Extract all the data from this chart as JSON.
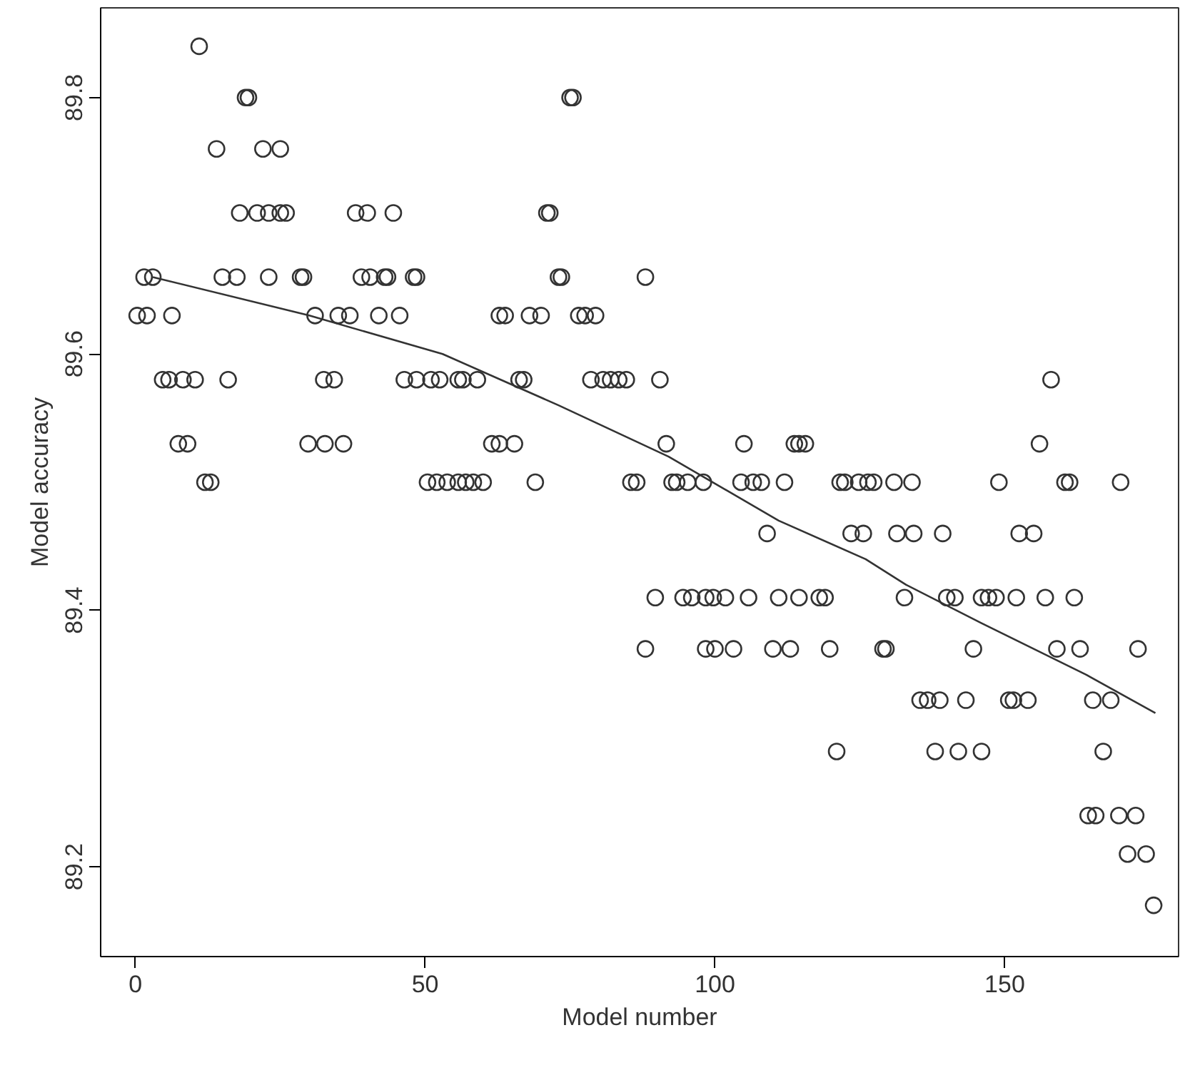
{
  "chart_data": {
    "type": "scatter",
    "xlabel": "Model number",
    "ylabel": "Model accuracy",
    "xlim": [
      -6,
      180
    ],
    "ylim": [
      89.13,
      89.87
    ],
    "xticks": [
      0,
      50,
      100,
      150
    ],
    "yticks": [
      89.2,
      89.4,
      89.6,
      89.8
    ],
    "grid": false,
    "series": [
      {
        "color": "#333333",
        "marker": "circle",
        "x": [
          11,
          19,
          19.5,
          75,
          75.5,
          14,
          22,
          25,
          18,
          21,
          23,
          25,
          26,
          38,
          40,
          44.5,
          71,
          71.5,
          1.5,
          3,
          15,
          17.5,
          23,
          28.5,
          29,
          39,
          40.5,
          43,
          43.5,
          48,
          48.5,
          73,
          73.5,
          88,
          0.3,
          2,
          6.3,
          31,
          35,
          37,
          42,
          45.6,
          62.8,
          63.8,
          68,
          70,
          76.5,
          77.6,
          79.4,
          4.7,
          5.8,
          8.2,
          10.3,
          16,
          32.5,
          34.3,
          46.4,
          48.5,
          51,
          52.5,
          55.7,
          56.5,
          59,
          66.2,
          67,
          78.6,
          80.7,
          82,
          83.4,
          84.7,
          90.5,
          158,
          7.4,
          9,
          29.8,
          32.7,
          35.9,
          61.5,
          62.8,
          65.4,
          91.6,
          105,
          113.7,
          114.5,
          115.6,
          156,
          12,
          13,
          50.4,
          52,
          53.8,
          55.7,
          57,
          58.3,
          60,
          69,
          85.5,
          86.5,
          92.6,
          93.4,
          95.3,
          98,
          104.5,
          106.6,
          108,
          112,
          121.6,
          122.4,
          124.8,
          126.4,
          127.4,
          130.9,
          134,
          149,
          160.4,
          161.2,
          170,
          109,
          123.5,
          125.6,
          131.4,
          134.3,
          139.3,
          152.5,
          155,
          89.7,
          94.5,
          96,
          98.4,
          99.7,
          101.8,
          105.8,
          111,
          114.5,
          118,
          119,
          132.7,
          140,
          141.4,
          146,
          147.2,
          148.5,
          152,
          157,
          162,
          88,
          98.4,
          100,
          103.2,
          110,
          113,
          119.8,
          129,
          129.5,
          144.6,
          159,
          163,
          173,
          135.4,
          136.7,
          138.8,
          143.3,
          150.7,
          151.5,
          154,
          165.2,
          168.3,
          121,
          138,
          142,
          146,
          167,
          164.4,
          165.7,
          169.7,
          172.6,
          171.2,
          174.4,
          175.7
        ],
        "values": [
          89.84,
          89.8,
          89.8,
          89.8,
          89.8,
          89.76,
          89.76,
          89.76,
          89.71,
          89.71,
          89.71,
          89.71,
          89.71,
          89.71,
          89.71,
          89.71,
          89.71,
          89.71,
          89.66,
          89.66,
          89.66,
          89.66,
          89.66,
          89.66,
          89.66,
          89.66,
          89.66,
          89.66,
          89.66,
          89.66,
          89.66,
          89.66,
          89.66,
          89.66,
          89.63,
          89.63,
          89.63,
          89.63,
          89.63,
          89.63,
          89.63,
          89.63,
          89.63,
          89.63,
          89.63,
          89.63,
          89.63,
          89.63,
          89.63,
          89.58,
          89.58,
          89.58,
          89.58,
          89.58,
          89.58,
          89.58,
          89.58,
          89.58,
          89.58,
          89.58,
          89.58,
          89.58,
          89.58,
          89.58,
          89.58,
          89.58,
          89.58,
          89.58,
          89.58,
          89.58,
          89.58,
          89.58,
          89.53,
          89.53,
          89.53,
          89.53,
          89.53,
          89.53,
          89.53,
          89.53,
          89.53,
          89.53,
          89.53,
          89.53,
          89.53,
          89.53,
          89.5,
          89.5,
          89.5,
          89.5,
          89.5,
          89.5,
          89.5,
          89.5,
          89.5,
          89.5,
          89.5,
          89.5,
          89.5,
          89.5,
          89.5,
          89.5,
          89.5,
          89.5,
          89.5,
          89.5,
          89.5,
          89.5,
          89.5,
          89.5,
          89.5,
          89.5,
          89.5,
          89.5,
          89.5,
          89.5,
          89.5,
          89.46,
          89.46,
          89.46,
          89.46,
          89.46,
          89.46,
          89.46,
          89.46,
          89.41,
          89.41,
          89.41,
          89.41,
          89.41,
          89.41,
          89.41,
          89.41,
          89.41,
          89.41,
          89.41,
          89.41,
          89.41,
          89.41,
          89.41,
          89.41,
          89.41,
          89.41,
          89.41,
          89.41,
          89.37,
          89.37,
          89.37,
          89.37,
          89.37,
          89.37,
          89.37,
          89.37,
          89.37,
          89.37,
          89.37,
          89.37,
          89.37,
          89.33,
          89.33,
          89.33,
          89.33,
          89.33,
          89.33,
          89.33,
          89.33,
          89.33,
          89.29,
          89.29,
          89.29,
          89.29,
          89.29,
          89.24,
          89.24,
          89.24,
          89.24,
          89.21,
          89.21,
          89.17
        ]
      },
      {
        "type": "line",
        "color": "#333333",
        "line_style": "solid",
        "marker": "none",
        "x": [
          3,
          30,
          53,
          73,
          92,
          111,
          126,
          133,
          146,
          164,
          176
        ],
        "values": [
          89.66,
          89.63,
          89.6,
          89.56,
          89.52,
          89.47,
          89.44,
          89.42,
          89.39,
          89.35,
          89.32
        ]
      }
    ]
  }
}
